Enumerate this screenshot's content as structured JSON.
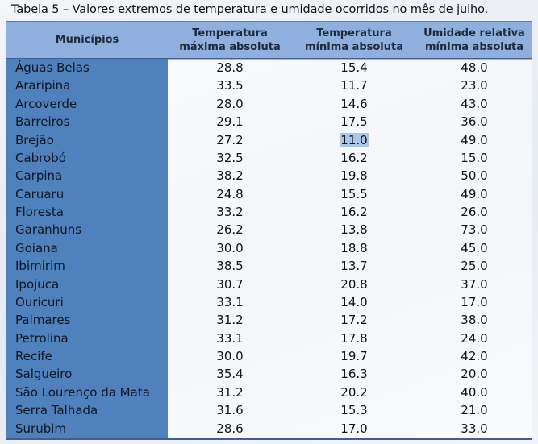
{
  "caption": "Tabela 5 – Valores extremos de temperatura e umidade ocorridos no mês de julho.",
  "headers": {
    "municipios": "Municípios",
    "tmax_line1": "Temperatura",
    "tmax_line2": "máxima absoluta",
    "tmin_line1": "Temperatura",
    "tmin_line2": "mínima absoluta",
    "umid_line1": "Umidade relativa",
    "umid_line2": "mínima absoluta"
  },
  "rows": [
    {
      "municipio": "Águas Belas",
      "tmax": "28.8",
      "tmin": "15.4",
      "umid": "48.0"
    },
    {
      "municipio": "Araripina",
      "tmax": "33.5",
      "tmin": "11.7",
      "umid": "23.0"
    },
    {
      "municipio": "Arcoverde",
      "tmax": "28.0",
      "tmin": "14.6",
      "umid": "43.0"
    },
    {
      "municipio": "Barreiros",
      "tmax": "29.1",
      "tmin": "17.5",
      "umid": "36.0"
    },
    {
      "municipio": "Brejão",
      "tmax": "27.2",
      "tmin": "11.0",
      "umid": "49.0",
      "tmin_highlight": true
    },
    {
      "municipio": "Cabrobó",
      "tmax": "32.5",
      "tmin": "16.2",
      "umid": "15.0"
    },
    {
      "municipio": "Carpina",
      "tmax": "38.2",
      "tmin": "19.8",
      "umid": "50.0"
    },
    {
      "municipio": "Caruaru",
      "tmax": "24.8",
      "tmin": "15.5",
      "umid": "49.0"
    },
    {
      "municipio": "Floresta",
      "tmax": "33.2",
      "tmin": "16.2",
      "umid": "26.0"
    },
    {
      "municipio": "Garanhuns",
      "tmax": "26.2",
      "tmin": "13.8",
      "umid": "73.0"
    },
    {
      "municipio": "Goiana",
      "tmax": "30.0",
      "tmin": "18.8",
      "umid": "45.0"
    },
    {
      "municipio": "Ibimirim",
      "tmax": "38.5",
      "tmin": "13.7",
      "umid": "25.0"
    },
    {
      "municipio": "Ipojuca",
      "tmax": "30.7",
      "tmin": "20.8",
      "umid": "37.0"
    },
    {
      "municipio": "Ouricuri",
      "tmax": "33.1",
      "tmin": "14.0",
      "umid": "17.0"
    },
    {
      "municipio": "Palmares",
      "tmax": "31.2",
      "tmin": "17.2",
      "umid": "38.0"
    },
    {
      "municipio": "Petrolina",
      "tmax": "33.1",
      "tmin": "17.8",
      "umid": "24.0"
    },
    {
      "municipio": "Recife",
      "tmax": "30.0",
      "tmin": "19.7",
      "umid": "42.0"
    },
    {
      "municipio": "Salgueiro",
      "tmax": "35.4",
      "tmin": "16.3",
      "umid": "20.0"
    },
    {
      "municipio": "São Lourenço da Mata",
      "tmax": "31.2",
      "tmin": "20.2",
      "umid": "40.0"
    },
    {
      "municipio": "Serra Talhada",
      "tmax": "31.6",
      "tmin": "15.3",
      "umid": "21.0"
    },
    {
      "municipio": "Surubim",
      "tmax": "28.6",
      "tmin": "17.0",
      "umid": "33.0"
    }
  ],
  "colors": {
    "header_bg": "#8fb0de",
    "name_col_bg": "#4f81bd",
    "rule": "#3c5f96",
    "highlight": "#a9c7ea"
  }
}
